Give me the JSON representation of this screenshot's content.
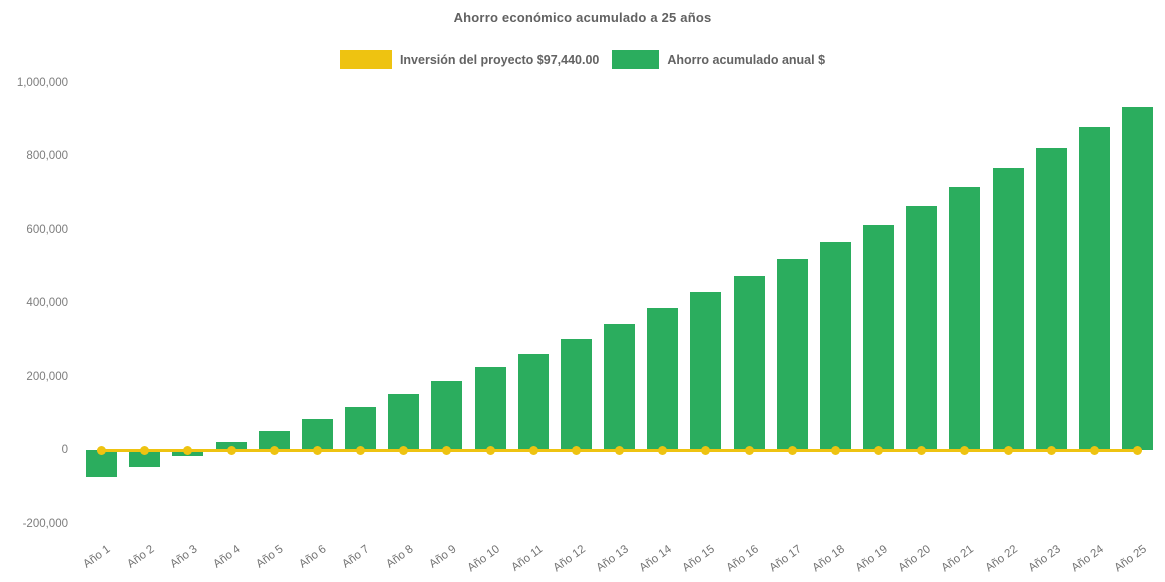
{
  "chart_data": {
    "type": "bar",
    "title": "Ahorro económico acumulado a 25 años",
    "legend_position": "top",
    "background_color": "#ffffff",
    "grid": false,
    "xlabel": "",
    "ylabel": "",
    "ylim": [
      -200000,
      1000000
    ],
    "y_ticks": [
      1000000,
      800000,
      600000,
      400000,
      200000,
      0,
      -200000
    ],
    "y_tick_labels": [
      "1,000,000",
      "800,000",
      "600,000",
      "400,000",
      "200,000",
      "0",
      "-200,000"
    ],
    "categories": [
      "Año 1",
      "Año 2",
      "Año 3",
      "Año 4",
      "Año 5",
      "Año 6",
      "Año 7",
      "Año 8",
      "Año 9",
      "Año 10",
      "Año 11",
      "Año 12",
      "Año 13",
      "Año 14",
      "Año 15",
      "Año 16",
      "Año 17",
      "Año 18",
      "Año 19",
      "Año 20",
      "Año 21",
      "Año 22",
      "Año 23",
      "Año 24",
      "Año 25"
    ],
    "series": [
      {
        "name": "Inversión del proyecto $97,440.00",
        "type": "line",
        "marker": "circle",
        "color": "#EEC311",
        "values": [
          0,
          0,
          0,
          0,
          0,
          0,
          0,
          0,
          0,
          0,
          0,
          0,
          0,
          0,
          0,
          0,
          0,
          0,
          0,
          0,
          0,
          0,
          0,
          0,
          0
        ]
      },
      {
        "name": "Ahorro acumulado anual $",
        "type": "bar",
        "color": "#2BAD5E",
        "values": [
          -73000,
          -46000,
          -16000,
          21000,
          52000,
          84000,
          117000,
          152000,
          188000,
          227000,
          261000,
          303000,
          342000,
          386000,
          431000,
          473000,
          519000,
          566000,
          612000,
          664000,
          716000,
          767000,
          823000,
          879000,
          934000
        ]
      }
    ],
    "text_colors": {
      "title": "#616161",
      "legend": "#636363",
      "axis_labels": "#7d7d7d"
    }
  }
}
